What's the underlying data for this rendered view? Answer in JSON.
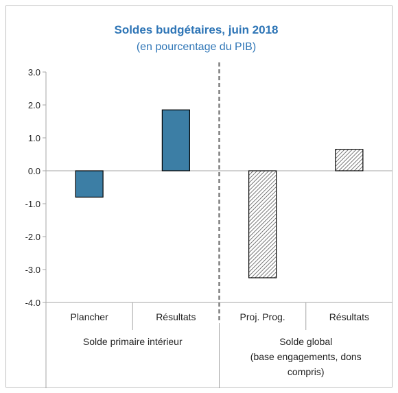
{
  "chart_data": {
    "type": "bar",
    "title": "Soldes budgétaires, juin 2018",
    "subtitle": "(en pourcentage du PIB)",
    "ylim": [
      -4.0,
      3.0
    ],
    "yticks": [
      "3.0",
      "2.0",
      "1.0",
      "0.0",
      "-1.0",
      "-2.0",
      "-3.0",
      "-4.0"
    ],
    "grid": false,
    "groups": [
      {
        "label_lines": [
          "Solde primaire intérieur"
        ],
        "fill": "solid",
        "color": "#3c7ea5",
        "bars": [
          {
            "category": "Plancher",
            "value": -0.8
          },
          {
            "category": "Résultats",
            "value": 1.85
          }
        ]
      },
      {
        "label_lines": [
          "Solde global",
          "(base engagements, dons",
          "compris)"
        ],
        "fill": "hatched",
        "color": "#555555",
        "bars": [
          {
            "category": "Proj. Prog.",
            "value": -3.25
          },
          {
            "category": "Résultats",
            "value": 0.65
          }
        ]
      }
    ]
  }
}
